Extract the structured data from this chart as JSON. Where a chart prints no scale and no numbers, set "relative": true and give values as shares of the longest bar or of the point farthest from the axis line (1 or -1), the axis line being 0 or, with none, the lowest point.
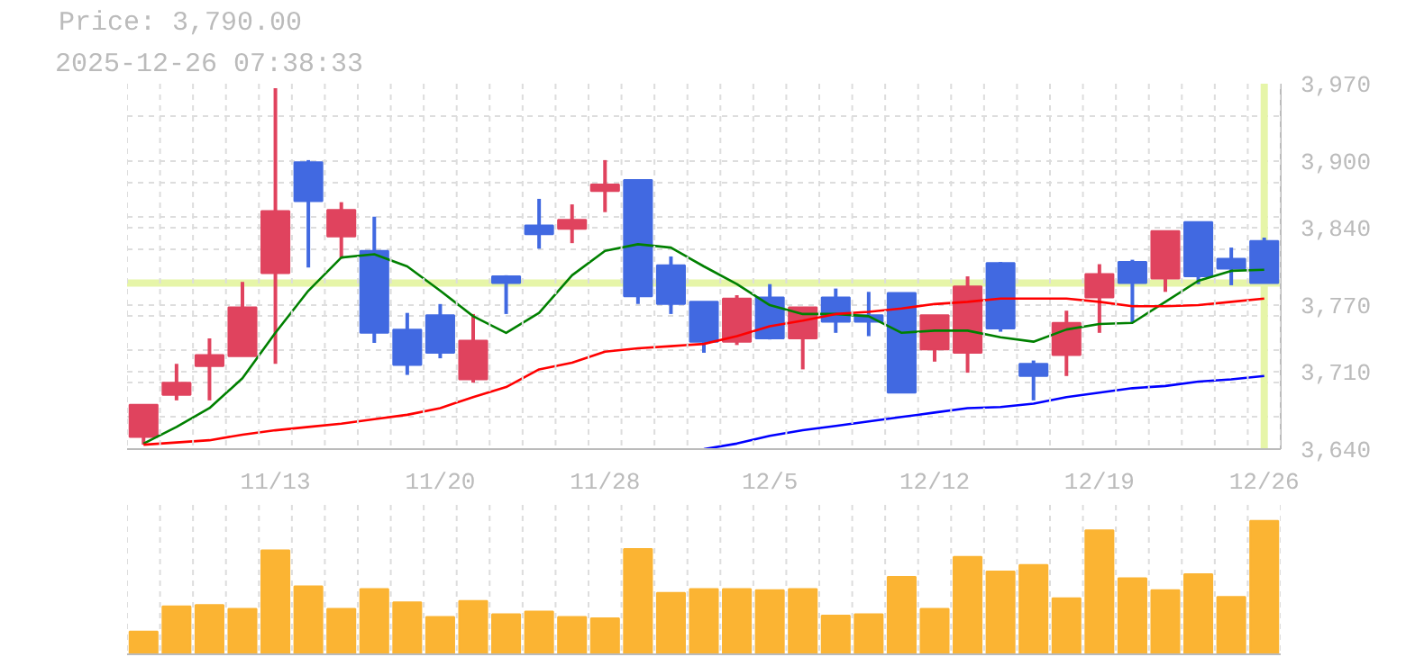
{
  "chart_data": [
    {
      "type": "candlestick",
      "title": "Price: 3,790.00",
      "subtitle": "2025-12-26 07:38:33",
      "categories": [
        null,
        null,
        null,
        null,
        "11/13",
        null,
        null,
        null,
        null,
        "11/20",
        null,
        null,
        null,
        null,
        "11/28",
        null,
        null,
        null,
        null,
        "12/5",
        null,
        null,
        null,
        null,
        "12/12",
        null,
        null,
        null,
        null,
        "12/19",
        null,
        null,
        null,
        null,
        "12/26"
      ],
      "ohlc": [
        [
          3651,
          3680,
          3644,
          3680
        ],
        [
          3689,
          3717,
          3684,
          3700
        ],
        [
          3715,
          3740,
          3684,
          3725
        ],
        [
          3724,
          3791,
          3724,
          3768
        ],
        [
          3799,
          3966,
          3717,
          3855
        ],
        [
          3899,
          3901,
          3804,
          3864
        ],
        [
          3832,
          3863,
          3812,
          3856
        ],
        [
          3819,
          3850,
          3736,
          3745
        ],
        [
          3748,
          3763,
          3707,
          3716
        ],
        [
          3761,
          3771,
          3722,
          3727
        ],
        [
          3703,
          3762,
          3700,
          3738
        ],
        [
          3796,
          3797,
          3762,
          3790
        ],
        [
          3842,
          3866,
          3821,
          3834
        ],
        [
          3839,
          3861,
          3826,
          3847
        ],
        [
          3873,
          3901,
          3854,
          3879
        ],
        [
          3883,
          3883,
          3771,
          3778
        ],
        [
          3806,
          3814,
          3762,
          3771
        ],
        [
          3773,
          3773,
          3727,
          3737
        ],
        [
          3737,
          3779,
          3734,
          3776
        ],
        [
          3777,
          3789,
          3739,
          3740
        ],
        [
          3740,
          3768,
          3712,
          3768
        ],
        [
          3777,
          3785,
          3745,
          3755
        ],
        [
          3761,
          3782,
          3742,
          3755
        ],
        [
          3781,
          3781,
          3691,
          3691
        ],
        [
          3730,
          3761,
          3719,
          3761
        ],
        [
          3727,
          3796,
          3709,
          3787
        ],
        [
          3808,
          3809,
          3746,
          3749
        ],
        [
          3717,
          3720,
          3684,
          3706
        ],
        [
          3725,
          3765,
          3706,
          3754
        ],
        [
          3777,
          3807,
          3745,
          3798
        ],
        [
          3809,
          3811,
          3754,
          3790
        ],
        [
          3794,
          3837,
          3782,
          3837
        ],
        [
          3845,
          3845,
          3789,
          3796
        ],
        [
          3812,
          3822,
          3788,
          3803
        ],
        [
          3828,
          3831,
          3790,
          3790
        ]
      ],
      "colors": [
        "#e0435e",
        "#e0435e",
        "#e0435e",
        "#e0435e",
        "#e0435e",
        "#4169e1",
        "#e0435e",
        "#4169e1",
        "#4169e1",
        "#4169e1",
        "#e0435e",
        "#4169e1",
        "#4169e1",
        "#e0435e",
        "#e0435e",
        "#4169e1",
        "#4169e1",
        "#4169e1",
        "#e0435e",
        "#4169e1",
        "#e0435e",
        "#4169e1",
        "#4169e1",
        "#4169e1",
        "#e0435e",
        "#e0435e",
        "#4169e1",
        "#4169e1",
        "#e0435e",
        "#e0435e",
        "#4169e1",
        "#e0435e",
        "#4169e1",
        "#4169e1",
        "#4169e1"
      ],
      "series": [
        {
          "type": "line",
          "color": "#008000",
          "values": [
            3645,
            3660,
            3677,
            3704,
            3745,
            3783,
            3813,
            3816,
            3805,
            3783,
            3760,
            3745,
            3763,
            3797,
            3819,
            3825,
            3822,
            3805,
            3789,
            3770,
            3762,
            3762,
            3760,
            3745,
            3747,
            3747,
            3741,
            3737,
            3748,
            3753,
            3754,
            3773,
            3792,
            3801,
            3802
          ]
        },
        {
          "type": "line",
          "color": "#ff0000",
          "values": [
            3644,
            3646,
            3648,
            3653,
            3657,
            3660,
            3663,
            3667,
            3671,
            3677,
            3687,
            3696,
            3712,
            3718,
            3728,
            3731,
            3733,
            3735,
            3742,
            3751,
            3756,
            3762,
            3764,
            3767,
            3771,
            3773,
            3776,
            3776,
            3776,
            3773,
            3769,
            3769,
            3770,
            3773,
            3776
          ]
        },
        {
          "type": "line",
          "color": "#0000ff",
          "values": [
            null,
            null,
            null,
            null,
            null,
            null,
            null,
            null,
            null,
            null,
            null,
            null,
            null,
            null,
            null,
            null,
            null,
            3640,
            3645,
            3652,
            3657,
            3661,
            3665,
            3669,
            3673,
            3677,
            3678,
            3681,
            3687,
            3691,
            3695,
            3697,
            3701,
            3703,
            3706
          ]
        }
      ],
      "ylim": [
        3640,
        3970
      ],
      "yticks": [
        {
          "value": 3640,
          "label": "3,640"
        },
        {
          "value": 3670,
          "label": null
        },
        {
          "value": 3700,
          "label": null
        },
        {
          "value": 3710,
          "label": "3,710"
        },
        {
          "value": 3730,
          "label": null
        },
        {
          "value": 3760,
          "label": null
        },
        {
          "value": 3770,
          "label": "3,770"
        },
        {
          "value": 3820,
          "label": null
        },
        {
          "value": 3840,
          "label": "3,840"
        },
        {
          "value": 3850,
          "label": null
        },
        {
          "value": 3880,
          "label": null
        },
        {
          "value": 3900,
          "label": "3,900"
        },
        {
          "value": 3940,
          "label": null
        },
        {
          "value": 3970,
          "label": "3,970"
        }
      ],
      "grid": true,
      "ref_lines": [
        {
          "axis": "y",
          "value": 3790,
          "color": "#e6f5a8"
        },
        {
          "axis": "x",
          "value": "12/26",
          "color": "#e6f5a8"
        }
      ]
    },
    {
      "type": "bar",
      "relative": true,
      "color": "#fbb433",
      "grid": "x",
      "categories": [
        null,
        null,
        null,
        null,
        null,
        null,
        null,
        null,
        null,
        null,
        null,
        null,
        null,
        null,
        null,
        null,
        null,
        null,
        null,
        null,
        null,
        null,
        null,
        null,
        null,
        null,
        null,
        null,
        null,
        null,
        null,
        null,
        null,
        null,
        null
      ],
      "values": [
        0.17,
        0.36,
        0.37,
        0.34,
        0.78,
        0.51,
        0.34,
        0.49,
        0.39,
        0.28,
        0.4,
        0.3,
        0.32,
        0.28,
        0.27,
        0.79,
        0.46,
        0.49,
        0.49,
        0.48,
        0.49,
        0.29,
        0.3,
        0.58,
        0.34,
        0.73,
        0.62,
        0.67,
        0.42,
        0.93,
        0.57,
        0.48,
        0.6,
        0.43,
        1
      ]
    }
  ]
}
